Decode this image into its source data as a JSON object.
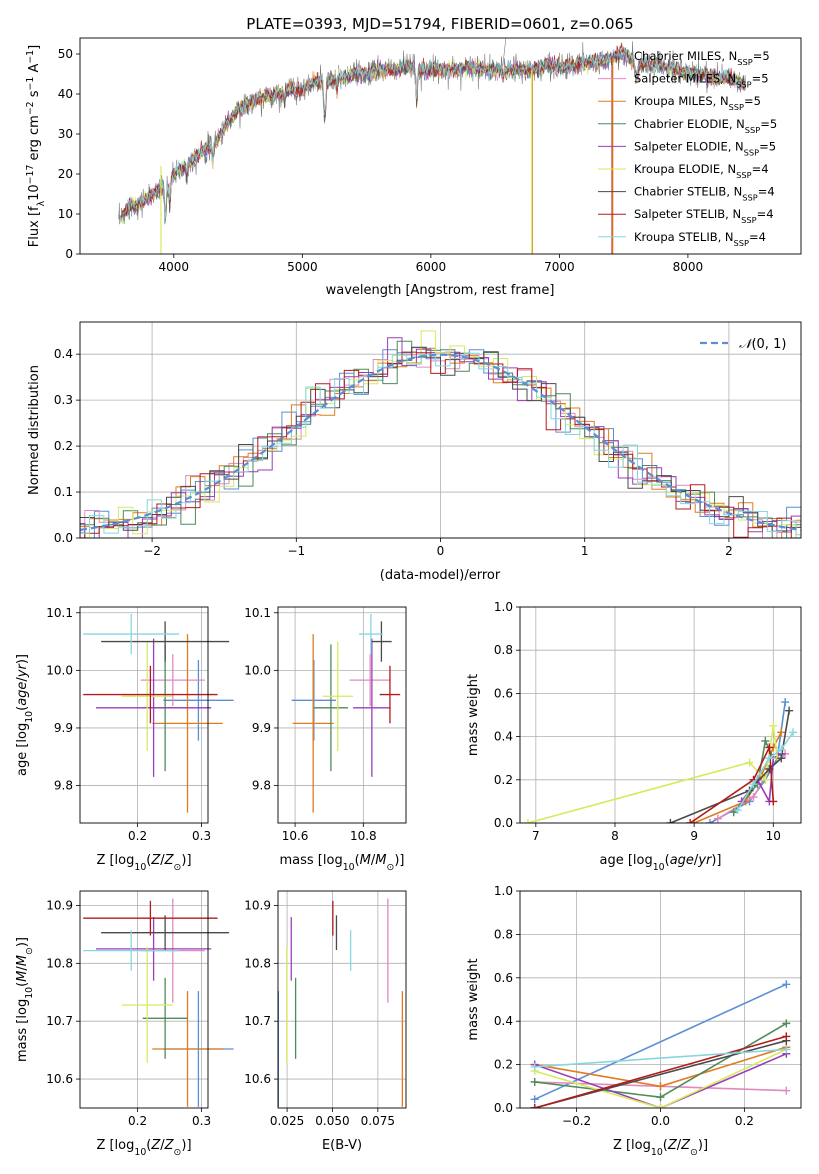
{
  "title": "PLATE=0393, MJD=51794, FIBERID=0601, z=0.065",
  "series": [
    {
      "name": "Chabrier MILES, N$_{SSP}$=5",
      "label": "Chabrier MILES, N",
      "sub": "SSP",
      "suffix": "=5",
      "color": "#5b8ed6"
    },
    {
      "name": "Salpeter MILES, N$_{SSP}$=5",
      "label": "Salpeter MILES, N",
      "sub": "SSP",
      "suffix": "=5",
      "color": "#e08ac0"
    },
    {
      "name": "Kroupa MILES, N$_{SSP}$=5",
      "label": "Kroupa MILES, N",
      "sub": "SSP",
      "suffix": "=5",
      "color": "#e07b20"
    },
    {
      "name": "Chabrier ELODIE, N$_{SSP}$=5",
      "label": "Chabrier ELODIE, N",
      "sub": "SSP",
      "suffix": "=5",
      "color": "#4e8a5a"
    },
    {
      "name": "Salpeter ELODIE, N$_{SSP}$=5",
      "label": "Salpeter ELODIE, N",
      "sub": "SSP",
      "suffix": "=5",
      "color": "#9a3fb8"
    },
    {
      "name": "Kroupa ELODIE, N$_{SSP}$=4",
      "label": "Kroupa ELODIE, N",
      "sub": "SSP",
      "suffix": "=4",
      "color": "#d7ea5e"
    },
    {
      "name": "Chabrier STELIB, N$_{SSP}$=4",
      "label": "Chabrier STELIB, N",
      "sub": "SSP",
      "suffix": "=4",
      "color": "#4a4a4a"
    },
    {
      "name": "Salpeter STELIB, N$_{SSP}$=4",
      "label": "Salpeter STELIB, N",
      "sub": "SSP",
      "suffix": "=4",
      "color": "#b31b1b"
    },
    {
      "name": "Kroupa STELIB, N$_{SSP}$=4",
      "label": "Kroupa STELIB, N",
      "sub": "SSP",
      "suffix": "=4",
      "color": "#86d6e0"
    }
  ],
  "chart_data": [
    {
      "type": "line",
      "id": "spectrum",
      "xlabel": "wavelength [Angstrom, rest frame]",
      "ylabel": "Flux [f$_\\lambda$10$^{-17}$ erg cm$^{-2}$ s$^{-1}$ A$^{-1}$]",
      "xlim": [
        3270,
        8880
      ],
      "ylim": [
        0,
        54
      ],
      "xticks": [
        4000,
        5000,
        6000,
        7000,
        8000
      ],
      "yticks": [
        0,
        10,
        20,
        30,
        40,
        50
      ],
      "data_color": "#777777",
      "continuum": {
        "x": [
          3570,
          3650,
          3750,
          3850,
          3900,
          3950,
          4000,
          4100,
          4200,
          4300,
          4400,
          4500,
          4600,
          4700,
          4800,
          4900,
          5000,
          5100,
          5200,
          5300,
          5400,
          5500,
          5600,
          5700,
          5800,
          5900,
          6000,
          6100,
          6200,
          6300,
          6400,
          6500,
          6600,
          6700,
          6800,
          6900,
          7000,
          7100,
          7200,
          7300,
          7400,
          7500,
          7600,
          7700,
          7800,
          7900,
          8000,
          8100,
          8200,
          8300,
          8400,
          8450
        ],
        "y": [
          8,
          12,
          13,
          15,
          17,
          16,
          20,
          22,
          25,
          27,
          32,
          36,
          38,
          39,
          40,
          41,
          41,
          43,
          43,
          44,
          45,
          45,
          46,
          46,
          47,
          46,
          46,
          46,
          46,
          47,
          46,
          46,
          46,
          46,
          46,
          47,
          47,
          47,
          48,
          48,
          49,
          50,
          48,
          47,
          47,
          46,
          45,
          45,
          44,
          44,
          43,
          42
        ]
      }
    },
    {
      "type": "histogram",
      "id": "residuals",
      "xlabel": "(data-model)/error",
      "ylabel": "Normed distribution",
      "xlim": [
        -2.5,
        2.5
      ],
      "ylim": [
        0,
        0.47
      ],
      "xticks": [
        -2,
        -1,
        0,
        1,
        2
      ],
      "yticks": [
        0.0,
        0.1,
        0.2,
        0.3,
        0.4
      ],
      "legend": {
        "label": "N(0,1)",
        "loc": "upper right",
        "color": "#5b8ed6"
      }
    },
    {
      "type": "scatter",
      "id": "age-vs-Z",
      "xlabel": "Z [log10(Z/Z⊙)]",
      "ylabel": "age  [log10(age/yr)]",
      "xlim": [
        0.11,
        0.31
      ],
      "ylim": [
        9.735,
        10.11
      ],
      "xticks": [
        0.2,
        0.3
      ],
      "yticks": [
        9.8,
        9.9,
        10.0,
        10.1
      ],
      "points": [
        {
          "s": 0,
          "x": 0.295,
          "y": 9.948,
          "xerr": 0.055,
          "yerr": 0.07
        },
        {
          "s": 1,
          "x": 0.255,
          "y": 9.983,
          "xerr": 0.05,
          "yerr": 0.045
        },
        {
          "s": 2,
          "x": 0.278,
          "y": 9.908,
          "xerr": 0.055,
          "yerr": 0.155
        },
        {
          "s": 3,
          "x": 0.243,
          "y": 9.935,
          "xerr": 0.035,
          "yerr": 0.11
        },
        {
          "s": 4,
          "x": 0.225,
          "y": 9.935,
          "xerr": 0.09,
          "yerr": 0.12
        },
        {
          "s": 5,
          "x": 0.215,
          "y": 9.955,
          "xerr": 0.04,
          "yerr": 0.095
        },
        {
          "s": 6,
          "x": 0.243,
          "y": 10.05,
          "xerr": 0.1,
          "yerr": 0.035
        },
        {
          "s": 7,
          "x": 0.22,
          "y": 9.958,
          "xerr": 0.105,
          "yerr": 0.05
        },
        {
          "s": 8,
          "x": 0.19,
          "y": 10.063,
          "xerr": 0.075,
          "yerr": 0.035
        }
      ]
    },
    {
      "type": "scatter",
      "id": "age-vs-mass",
      "xlabel": "mass [log10(M/M⊙)]",
      "ylabel": "",
      "xlim": [
        10.55,
        10.925
      ],
      "ylim": [
        9.735,
        10.11
      ],
      "xticks": [
        10.6,
        10.8
      ],
      "yticks": [
        9.8,
        9.9,
        10.0,
        10.1
      ],
      "points": [
        {
          "s": 0,
          "x": 10.655,
          "y": 9.948,
          "xerr": 0.065,
          "yerr": 0.07
        },
        {
          "s": 1,
          "x": 10.82,
          "y": 9.983,
          "xerr": 0.06,
          "yerr": 0.045
        },
        {
          "s": 2,
          "x": 10.653,
          "y": 9.908,
          "xerr": 0.06,
          "yerr": 0.155
        },
        {
          "s": 3,
          "x": 10.705,
          "y": 9.935,
          "xerr": 0.05,
          "yerr": 0.11
        },
        {
          "s": 4,
          "x": 10.825,
          "y": 9.935,
          "xerr": 0.055,
          "yerr": 0.12
        },
        {
          "s": 5,
          "x": 10.725,
          "y": 9.955,
          "xerr": 0.045,
          "yerr": 0.095
        },
        {
          "s": 6,
          "x": 10.853,
          "y": 10.05,
          "xerr": 0.03,
          "yerr": 0.035
        },
        {
          "s": 7,
          "x": 10.878,
          "y": 9.958,
          "xerr": 0.03,
          "yerr": 0.05
        },
        {
          "s": 8,
          "x": 10.822,
          "y": 10.063,
          "xerr": 0.035,
          "yerr": 0.035
        }
      ]
    },
    {
      "type": "line",
      "id": "weight-vs-age",
      "xlabel": "age  [log10(age/yr)]",
      "ylabel": "mass weight",
      "xlim": [
        6.8,
        10.35
      ],
      "ylim": [
        0,
        1.0
      ],
      "xticks": [
        7,
        8,
        9,
        10
      ],
      "yticks": [
        0.0,
        0.2,
        0.4,
        0.6,
        0.8,
        1.0
      ],
      "lines": [
        {
          "s": 0,
          "x": [
            9.2,
            9.7,
            9.9,
            10.05,
            10.15
          ],
          "y": [
            0.0,
            0.1,
            0.2,
            0.3,
            0.56
          ]
        },
        {
          "s": 1,
          "x": [
            9.3,
            9.75,
            9.95,
            10.1,
            10.15
          ],
          "y": [
            0.02,
            0.12,
            0.25,
            0.3,
            0.32
          ]
        },
        {
          "s": 2,
          "x": [
            9.0,
            9.65,
            9.85,
            10.0,
            10.1
          ],
          "y": [
            0.0,
            0.1,
            0.22,
            0.35,
            0.42
          ]
        },
        {
          "s": 3,
          "x": [
            9.5,
            9.8,
            9.9,
            10.0,
            10.1
          ],
          "y": [
            0.05,
            0.18,
            0.38,
            0.3,
            0.32
          ]
        },
        {
          "s": 4,
          "x": [
            9.6,
            9.8,
            9.95,
            10.0,
            10.1
          ],
          "y": [
            0.1,
            0.2,
            0.1,
            0.3,
            0.32
          ]
        },
        {
          "s": 5,
          "x": [
            6.9,
            9.7,
            9.9,
            10.0,
            10.05
          ],
          "y": [
            0.0,
            0.28,
            0.2,
            0.45,
            0.3
          ]
        },
        {
          "s": 6,
          "x": [
            8.7,
            9.7,
            9.95,
            10.1,
            10.2
          ],
          "y": [
            0.0,
            0.15,
            0.25,
            0.3,
            0.52
          ]
        },
        {
          "s": 7,
          "x": [
            8.95,
            9.75,
            9.95,
            10.0
          ],
          "y": [
            0.0,
            0.2,
            0.35,
            0.1
          ]
        },
        {
          "s": 8,
          "x": [
            9.55,
            9.75,
            9.95,
            10.1,
            10.25
          ],
          "y": [
            0.06,
            0.18,
            0.3,
            0.34,
            0.42
          ]
        }
      ]
    },
    {
      "type": "scatter",
      "id": "mass-vs-Z",
      "xlabel": "Z [log10(Z/Z⊙)]",
      "ylabel": "mass [log10(M/M⊙)]",
      "xlim": [
        0.11,
        0.31
      ],
      "ylim": [
        10.55,
        10.925
      ],
      "xticks": [
        0.2,
        0.3
      ],
      "yticks": [
        10.6,
        10.7,
        10.8,
        10.9
      ],
      "points": [
        {
          "s": 0,
          "x": 0.295,
          "y": 10.652,
          "xerr": 0.055,
          "yerr": 0.1
        },
        {
          "s": 1,
          "x": 0.255,
          "y": 10.822,
          "xerr": 0.05,
          "yerr": 0.09
        },
        {
          "s": 2,
          "x": 0.278,
          "y": 10.652,
          "xerr": 0.055,
          "yerr": 0.1
        },
        {
          "s": 3,
          "x": 0.243,
          "y": 10.705,
          "xerr": 0.035,
          "yerr": 0.07
        },
        {
          "s": 4,
          "x": 0.225,
          "y": 10.825,
          "xerr": 0.09,
          "yerr": 0.055
        },
        {
          "s": 5,
          "x": 0.215,
          "y": 10.728,
          "xerr": 0.04,
          "yerr": 0.1
        },
        {
          "s": 6,
          "x": 0.243,
          "y": 10.853,
          "xerr": 0.1,
          "yerr": 0.03
        },
        {
          "s": 7,
          "x": 0.22,
          "y": 10.878,
          "xerr": 0.105,
          "yerr": 0.03
        },
        {
          "s": 8,
          "x": 0.19,
          "y": 10.822,
          "xerr": 0.075,
          "yerr": 0.035
        }
      ]
    },
    {
      "type": "scatter",
      "id": "mass-vs-ebv",
      "xlabel": "E(B-V)",
      "ylabel": "",
      "xlim": [
        0.02,
        0.0905
      ],
      "ylim": [
        10.55,
        10.925
      ],
      "xticks": [
        0.025,
        0.05,
        0.075
      ],
      "yticks": [
        10.6,
        10.7,
        10.8,
        10.9
      ],
      "points": [
        {
          "s": 0,
          "x": 0.0202,
          "y": 10.652,
          "xerr": 0,
          "yerr": 0.1
        },
        {
          "s": 1,
          "x": 0.0805,
          "y": 10.822,
          "xerr": 0,
          "yerr": 0.09
        },
        {
          "s": 2,
          "x": 0.0885,
          "y": 10.652,
          "xerr": 0,
          "yerr": 0.1
        },
        {
          "s": 3,
          "x": 0.0297,
          "y": 10.705,
          "xerr": 0,
          "yerr": 0.07
        },
        {
          "s": 4,
          "x": 0.0273,
          "y": 10.825,
          "xerr": 0,
          "yerr": 0.055
        },
        {
          "s": 5,
          "x": 0.0248,
          "y": 10.728,
          "xerr": 0,
          "yerr": 0.1
        },
        {
          "s": 6,
          "x": 0.0522,
          "y": 10.853,
          "xerr": 0,
          "yerr": 0.03
        },
        {
          "s": 7,
          "x": 0.0502,
          "y": 10.878,
          "xerr": 0,
          "yerr": 0.03
        },
        {
          "s": 8,
          "x": 0.06,
          "y": 10.822,
          "xerr": 0,
          "yerr": 0.035
        }
      ]
    },
    {
      "type": "line",
      "id": "weight-vs-Z",
      "xlabel": "Z [log10(Z/Z⊙)]",
      "ylabel": "mass weight",
      "xlim": [
        -0.335,
        0.335
      ],
      "ylim": [
        0,
        1.0
      ],
      "xticks": [
        -0.2,
        0.0,
        0.2
      ],
      "yticks": [
        0.0,
        0.2,
        0.4,
        0.6,
        0.8,
        1.0
      ],
      "lines": [
        {
          "s": 0,
          "x": [
            -0.3,
            0.3
          ],
          "y": [
            0.04,
            0.57
          ]
        },
        {
          "s": 1,
          "x": [
            -0.3,
            0.0,
            0.3
          ],
          "y": [
            0.12,
            0.1,
            0.08
          ]
        },
        {
          "s": 2,
          "x": [
            -0.3,
            0.0,
            0.3
          ],
          "y": [
            0.2,
            0.1,
            0.28
          ]
        },
        {
          "s": 3,
          "x": [
            -0.3,
            0.0,
            0.3
          ],
          "y": [
            0.12,
            0.05,
            0.39
          ]
        },
        {
          "s": 4,
          "x": [
            -0.3,
            0.0,
            0.3
          ],
          "y": [
            0.2,
            0.0,
            0.25
          ]
        },
        {
          "s": 5,
          "x": [
            -0.3,
            0.0,
            0.3
          ],
          "y": [
            0.17,
            0.0,
            0.27
          ]
        },
        {
          "s": 6,
          "x": [
            -0.3,
            0.3
          ],
          "y": [
            0.0,
            0.31
          ]
        },
        {
          "s": 7,
          "x": [
            -0.3,
            0.3
          ],
          "y": [
            0.0,
            0.33
          ]
        },
        {
          "s": 8,
          "x": [
            -0.3,
            0.3
          ],
          "y": [
            0.19,
            0.27
          ]
        }
      ]
    }
  ]
}
